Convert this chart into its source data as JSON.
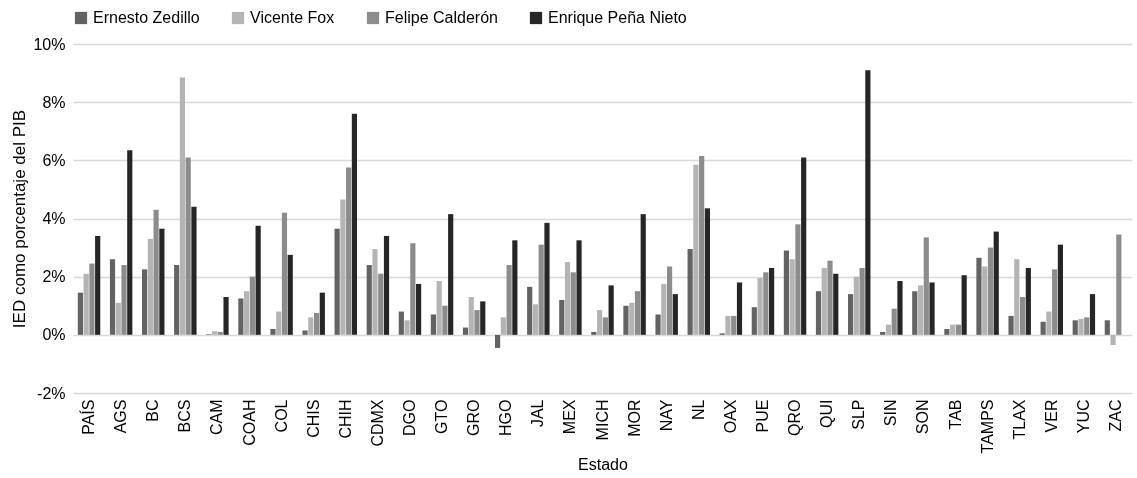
{
  "chart_data": {
    "type": "bar",
    "xlabel": "Estado",
    "ylabel": "IED como porcentaje del PIB",
    "categories": [
      "PAÍS",
      "AGS",
      "BC",
      "BCS",
      "CAM",
      "COAH",
      "COL",
      "CHIS",
      "CHIH",
      "CDMX",
      "DGO",
      "GTO",
      "GRO",
      "HGO",
      "JAL",
      "MEX",
      "MICH",
      "MOR",
      "NAY",
      "NL",
      "OAX",
      "PUE",
      "QRO",
      "QUI",
      "SLP",
      "SIN",
      "SON",
      "TAB",
      "TAMPS",
      "TLAX",
      "VER",
      "YUC",
      "ZAC"
    ],
    "series": [
      {
        "name": "Ernesto Zedillo",
        "color": "#636363",
        "values": [
          1.45,
          2.6,
          2.25,
          2.4,
          0.02,
          1.25,
          0.2,
          0.15,
          3.65,
          2.4,
          0.8,
          0.7,
          0.25,
          -0.45,
          1.65,
          1.2,
          0.1,
          1.0,
          0.7,
          2.95,
          0.05,
          0.95,
          2.9,
          1.5,
          1.4,
          0.1,
          1.5,
          0.2,
          2.65,
          0.65,
          0.45,
          0.5,
          0.5
        ]
      },
      {
        "name": "Vicente Fox",
        "color": "#b4b4b4",
        "values": [
          2.1,
          1.1,
          3.3,
          8.85,
          0.12,
          1.5,
          0.8,
          0.6,
          4.65,
          2.95,
          0.5,
          1.85,
          1.3,
          0.6,
          1.05,
          2.5,
          0.85,
          1.1,
          1.75,
          5.85,
          0.65,
          1.95,
          2.6,
          2.3,
          2.0,
          0.35,
          1.7,
          0.35,
          2.35,
          2.6,
          0.8,
          0.55,
          -0.35
        ]
      },
      {
        "name": "Felipe Calderón",
        "color": "#8c8c8c",
        "values": [
          2.45,
          2.4,
          4.3,
          6.1,
          0.1,
          2.0,
          4.2,
          0.75,
          5.75,
          2.1,
          3.15,
          1.0,
          0.85,
          2.4,
          3.1,
          2.15,
          0.6,
          1.5,
          2.35,
          6.15,
          0.65,
          2.15,
          3.8,
          2.55,
          2.3,
          0.9,
          3.35,
          0.35,
          3.0,
          1.3,
          2.25,
          0.6,
          3.45
        ]
      },
      {
        "name": "Enrique Peña Nieto",
        "color": "#262626",
        "values": [
          3.4,
          6.35,
          3.65,
          4.4,
          1.3,
          3.75,
          2.75,
          1.45,
          7.6,
          3.4,
          1.75,
          4.15,
          1.15,
          3.25,
          3.85,
          3.25,
          1.7,
          4.15,
          1.4,
          4.35,
          1.8,
          2.3,
          6.1,
          2.1,
          9.1,
          1.85,
          1.8,
          2.05,
          3.55,
          2.3,
          3.1,
          1.4,
          null
        ]
      }
    ],
    "ylim": [
      -2,
      10
    ],
    "yticks": [
      {
        "value": -2,
        "label": "-2%"
      },
      {
        "value": 0,
        "label": "0%"
      },
      {
        "value": 2,
        "label": "2%"
      },
      {
        "value": 4,
        "label": "4%"
      },
      {
        "value": 6,
        "label": "6%"
      },
      {
        "value": 8,
        "label": "8%"
      },
      {
        "value": 10,
        "label": "10%"
      }
    ],
    "grid": "y",
    "legend": "top"
  }
}
